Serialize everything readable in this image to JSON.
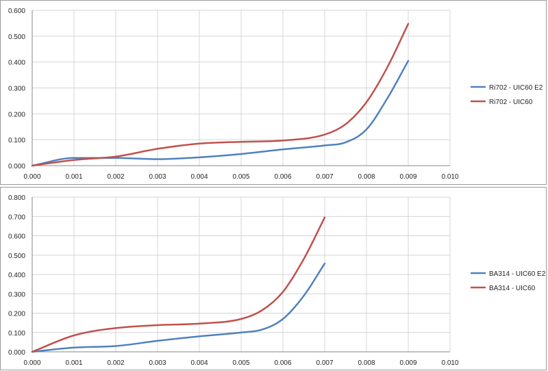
{
  "chart_data": [
    {
      "type": "line",
      "title": "",
      "xlabel": "",
      "ylabel": "",
      "xlim": [
        0,
        0.01
      ],
      "ylim": [
        0,
        0.6
      ],
      "x_ticks": [
        "0.000",
        "0.001",
        "0.002",
        "0.003",
        "0.004",
        "0.005",
        "0.006",
        "0.007",
        "0.008",
        "0.009",
        "0.010"
      ],
      "y_ticks": [
        "0.000",
        "0.100",
        "0.200",
        "0.300",
        "0.400",
        "0.500",
        "0.600"
      ],
      "grid": true,
      "legend_position": "right",
      "series": [
        {
          "name": "Ri702 - UIC60 E2",
          "color": "#4f81bd",
          "x": [
            0,
            0.001,
            0.002,
            0.003,
            0.004,
            0.005,
            0.006,
            0.007,
            0.0075,
            0.008,
            0.0085,
            0.009
          ],
          "y": [
            0,
            0.03,
            0.03,
            0.025,
            0.032,
            0.045,
            0.063,
            0.078,
            0.09,
            0.14,
            0.26,
            0.405
          ]
        },
        {
          "name": "Ri702 - UIC60",
          "color": "#c0504d",
          "x": [
            0,
            0.001,
            0.002,
            0.003,
            0.004,
            0.005,
            0.006,
            0.007,
            0.0075,
            0.008,
            0.0085,
            0.009
          ],
          "y": [
            0,
            0.022,
            0.035,
            0.065,
            0.085,
            0.092,
            0.097,
            0.12,
            0.16,
            0.245,
            0.38,
            0.548
          ]
        }
      ]
    },
    {
      "type": "line",
      "title": "",
      "xlabel": "",
      "ylabel": "",
      "xlim": [
        0,
        0.01
      ],
      "ylim": [
        0,
        0.8
      ],
      "x_ticks": [
        "0.000",
        "0.001",
        "0.002",
        "0.003",
        "0.004",
        "0.005",
        "0.006",
        "0.007",
        "0.008",
        "0.009",
        "0.010"
      ],
      "y_ticks": [
        "0.000",
        "0.100",
        "0.200",
        "0.300",
        "0.400",
        "0.500",
        "0.600",
        "0.700",
        "0.800"
      ],
      "grid": true,
      "legend_position": "right",
      "series": [
        {
          "name": "BA314 - UIC60 E2",
          "color": "#4f81bd",
          "x": [
            0,
            0.001,
            0.002,
            0.003,
            0.004,
            0.005,
            0.0055,
            0.006,
            0.0065,
            0.007
          ],
          "y": [
            0,
            0.022,
            0.03,
            0.057,
            0.08,
            0.1,
            0.115,
            0.17,
            0.29,
            0.457
          ]
        },
        {
          "name": "BA314 - UIC60",
          "color": "#c0504d",
          "x": [
            0,
            0.001,
            0.002,
            0.003,
            0.004,
            0.005,
            0.0055,
            0.006,
            0.0065,
            0.007
          ],
          "y": [
            0,
            0.085,
            0.123,
            0.138,
            0.146,
            0.17,
            0.215,
            0.31,
            0.48,
            0.695
          ]
        }
      ]
    }
  ]
}
